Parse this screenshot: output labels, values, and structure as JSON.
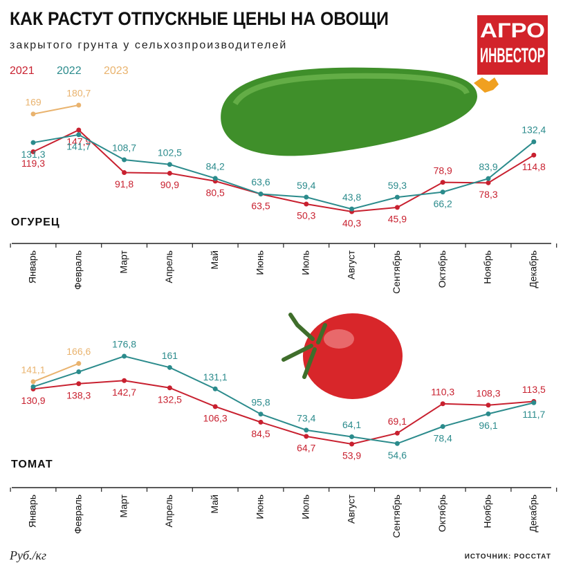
{
  "header": {
    "title": "КАК РАСТУТ ОТПУСКНЫЕ ЦЕНЫ НА ОВОЩИ",
    "subtitle": "закрытого грунта у сельхозпроизводителей",
    "logo": [
      "АГРО",
      "ИНВЕСТОР"
    ]
  },
  "chart_data": [
    {
      "type": "line",
      "label": "ОГУРЕЦ",
      "categories": [
        "Январь",
        "Февраль",
        "Март",
        "Апрель",
        "Май",
        "Июнь",
        "Июль",
        "Август",
        "Сентябрь",
        "Октябрь",
        "Ноябрь",
        "Декабрь"
      ],
      "series": [
        {
          "name": "2021",
          "color": "#c8202f",
          "values": [
            119.3,
            147.9,
            91.8,
            90.9,
            80.5,
            63.5,
            50.3,
            40.3,
            45.9,
            78.9,
            78.3,
            114.8
          ],
          "value_labels": [
            "119,3",
            "147,9",
            "91,8",
            "90,9",
            "80,5",
            "63,5",
            "50,3",
            "40,3",
            "45,9",
            "78,9",
            "78,3",
            "114,8"
          ]
        },
        {
          "name": "2022",
          "color": "#2b8b8c",
          "values": [
            131.3,
            141.7,
            108.7,
            102.5,
            84.2,
            63.6,
            59.4,
            43.8,
            59.3,
            66.2,
            83.9,
            132.4
          ],
          "value_labels": [
            "131,3",
            "141,7",
            "108,7",
            "102,5",
            "84,2",
            "63,6",
            "59,4",
            "43,8",
            "59,3",
            "66,2",
            "83,9",
            "132,4"
          ]
        },
        {
          "name": "2023",
          "color": "#e9b36e",
          "values": [
            169,
            180.7,
            null,
            null,
            null,
            null,
            null,
            null,
            null,
            null,
            null,
            null
          ],
          "value_labels": [
            "169",
            "180,7",
            null,
            null,
            null,
            null,
            null,
            null,
            null,
            null,
            null,
            null
          ]
        }
      ]
    },
    {
      "type": "line",
      "label": "ТОМАТ",
      "categories": [
        "Январь",
        "Февраль",
        "Март",
        "Апрель",
        "Май",
        "Июнь",
        "Июль",
        "Август",
        "Сентябрь",
        "Октябрь",
        "Ноябрь",
        "Декабрь"
      ],
      "series": [
        {
          "color": "#c8202f",
          "values": [
            130.9,
            138.3,
            142.7,
            132.5,
            106.3,
            84.5,
            64.7,
            53.9,
            69.1,
            110.3,
            108.3,
            113.5
          ],
          "value_labels": [
            "130,9",
            "138,3",
            "142,7",
            "132,5",
            "106,3",
            "84,5",
            "64,7",
            "53,9",
            "69,1",
            "110,3",
            "108,3",
            "113,5"
          ]
        },
        {
          "color": "#2b8b8c",
          "values": [
            134,
            155,
            176.8,
            161,
            131.1,
            95.8,
            73.4,
            64.1,
            54.6,
            78.4,
            96.1,
            111.7
          ],
          "value_labels": [
            null,
            null,
            "176,8",
            "161",
            "131,1",
            "95,8",
            "73,4",
            "64,1",
            "54,6",
            "78,4",
            "96,1",
            "111,7"
          ]
        },
        {
          "color": "#e9b36e",
          "values": [
            141.1,
            166.6,
            null,
            null,
            null,
            null,
            null,
            null,
            null,
            null,
            null,
            null
          ],
          "value_labels": [
            "141,1",
            "166,6",
            null,
            null,
            null,
            null,
            null,
            null,
            null,
            null,
            null,
            null
          ]
        }
      ]
    }
  ],
  "footer": {
    "unit": "Руб./кг",
    "source": "ИСТОЧНИК: РОССТАТ"
  }
}
